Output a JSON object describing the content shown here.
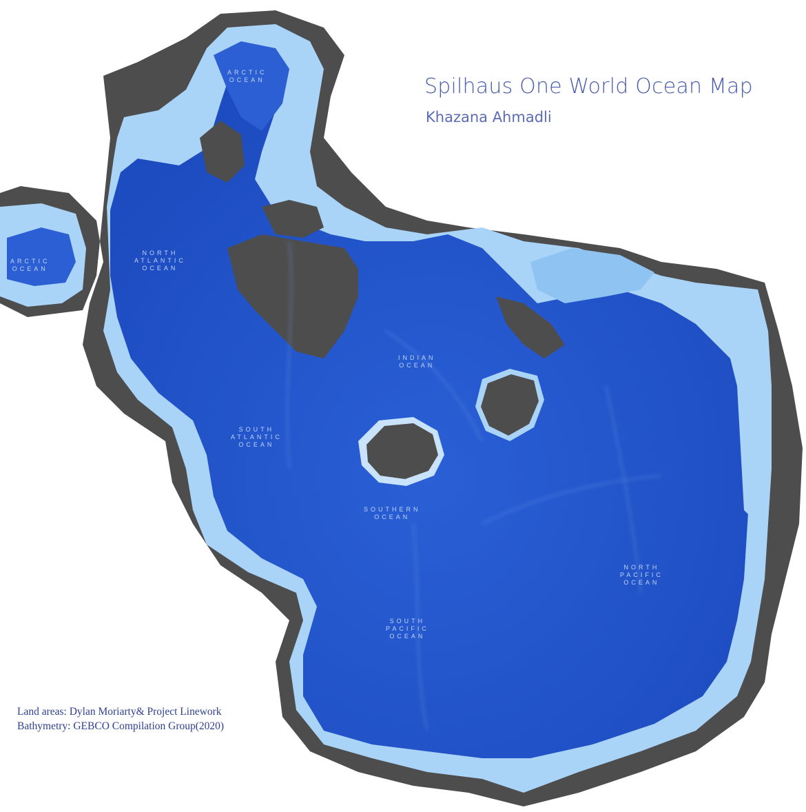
{
  "title": "Spilhaus One World Ocean Map",
  "author": "Khazana Ahmadli",
  "credits": {
    "land": "Land areas: Dylan Moriarty& Project Linework",
    "bathymetry": "Bathymetry: GEBCO Compilation Group(2020)"
  },
  "labels": {
    "arctic_top": [
      "ARCTIC",
      "OCEAN"
    ],
    "arctic_left": [
      "ARCTIC",
      "OCEAN"
    ],
    "north_atlantic": [
      "NORTH",
      "ATLANTIC",
      "OCEAN"
    ],
    "south_atlantic": [
      "SOUTH",
      "ATLANTIC",
      "OCEAN"
    ],
    "indian": [
      "INDIAN",
      "OCEAN"
    ],
    "southern": [
      "SOUTHERN",
      "OCEAN"
    ],
    "south_pacific": [
      "SOUTH",
      "PACIFIC",
      "OCEAN"
    ],
    "north_pacific": [
      "NORTH",
      "PACIFIC",
      "OCEAN"
    ]
  },
  "colors": {
    "land": "#4d4d4d",
    "deep_ocean": "#1f4fc4",
    "ocean": "#2f63d8",
    "shelf": "#8fc3f2",
    "coast": "#c8e3fb",
    "title": "#4a5cad"
  }
}
